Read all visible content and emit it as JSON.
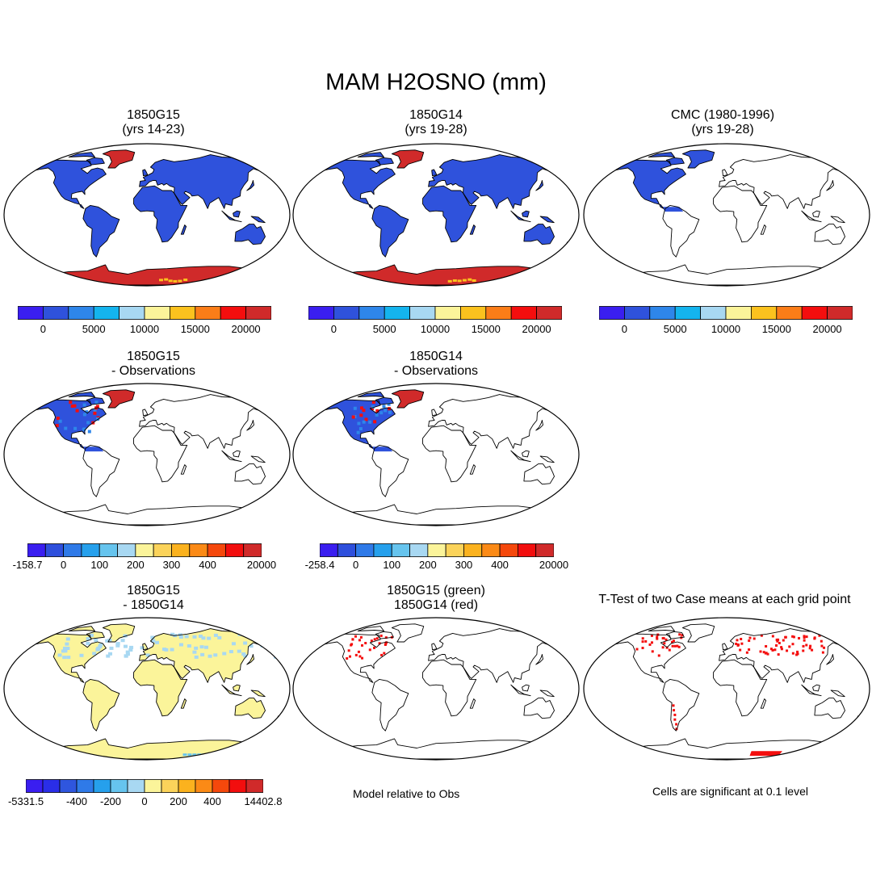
{
  "title": "MAM H2OSNO (mm)",
  "panels": {
    "p1": {
      "title_line1": "1850G15",
      "title_line2": "(yrs 14-23)"
    },
    "p2": {
      "title_line1": "1850G14",
      "title_line2": "(yrs 19-28)"
    },
    "p3": {
      "title_line1": "CMC (1980-1996)",
      "title_line2": "(yrs 19-28)"
    },
    "p4": {
      "title_line1": "1850G15",
      "title_line2": "- Observations"
    },
    "p5": {
      "title_line1": "1850G14",
      "title_line2": "- Observations"
    },
    "p7": {
      "title_line1": "1850G15",
      "title_line2": "- 1850G14"
    },
    "p8": {
      "title_line1": "1850G15 (green)",
      "title_line2": "1850G14 (red)"
    },
    "p9": {
      "title_line1": "T-Test of two Case means at each grid point",
      "title_line2": ""
    }
  },
  "colorbars": {
    "abs": {
      "colors": [
        "#3a1ef0",
        "#2f52dc",
        "#2e86ea",
        "#14b4ee",
        "#a8d8f2",
        "#fbf49a",
        "#fbc21e",
        "#fb7d18",
        "#f40e0e",
        "#d02a2a"
      ],
      "labels": [
        "0",
        "5000",
        "10000",
        "15000",
        "20000"
      ]
    },
    "diff1": {
      "colors": [
        "#3a1ef0",
        "#2e4fdc",
        "#2f7ae8",
        "#26a0ec",
        "#66c4ee",
        "#a8d8f2",
        "#fbf49a",
        "#fbd35a",
        "#fbb21e",
        "#fb8a16",
        "#f5480c",
        "#f20e0e",
        "#d02a2a"
      ],
      "labels": [
        "-158.7",
        "0",
        "100",
        "200",
        "300",
        "400",
        "20000"
      ]
    },
    "diff2": {
      "colors": [
        "#3a1ef0",
        "#2e4fdc",
        "#2f7ae8",
        "#26a0ec",
        "#66c4ee",
        "#a8d8f2",
        "#fbf49a",
        "#fbd35a",
        "#fbb21e",
        "#fb8a16",
        "#f5480c",
        "#f20e0e",
        "#d02a2a"
      ],
      "labels": [
        "-258.4",
        "0",
        "100",
        "200",
        "300",
        "400",
        "20000"
      ]
    },
    "diff3": {
      "colors": [
        "#3a1ef0",
        "#2a2ee8",
        "#2f56de",
        "#2f7ae8",
        "#26a0ec",
        "#66c4ee",
        "#a8d8f2",
        "#fbf49a",
        "#fbd35a",
        "#fbb21e",
        "#fb8a16",
        "#f5480c",
        "#f20e0e",
        "#d02a2a"
      ],
      "labels": [
        "-5331.5",
        "-400",
        "-200",
        "0",
        "200",
        "400",
        "14402.8"
      ]
    }
  },
  "notes": {
    "model_relative": "Model relative to Obs",
    "significance": "Cells are significant at 0.1 level"
  },
  "map_colors": {
    "snow_blue": "#2f52dc",
    "snow_red": "#d02a2a",
    "diff_yellow": "#fbf49a",
    "diff_lightblue": "#a8d8f2",
    "sig_red": "#f40e0e",
    "outline": "#000000"
  }
}
